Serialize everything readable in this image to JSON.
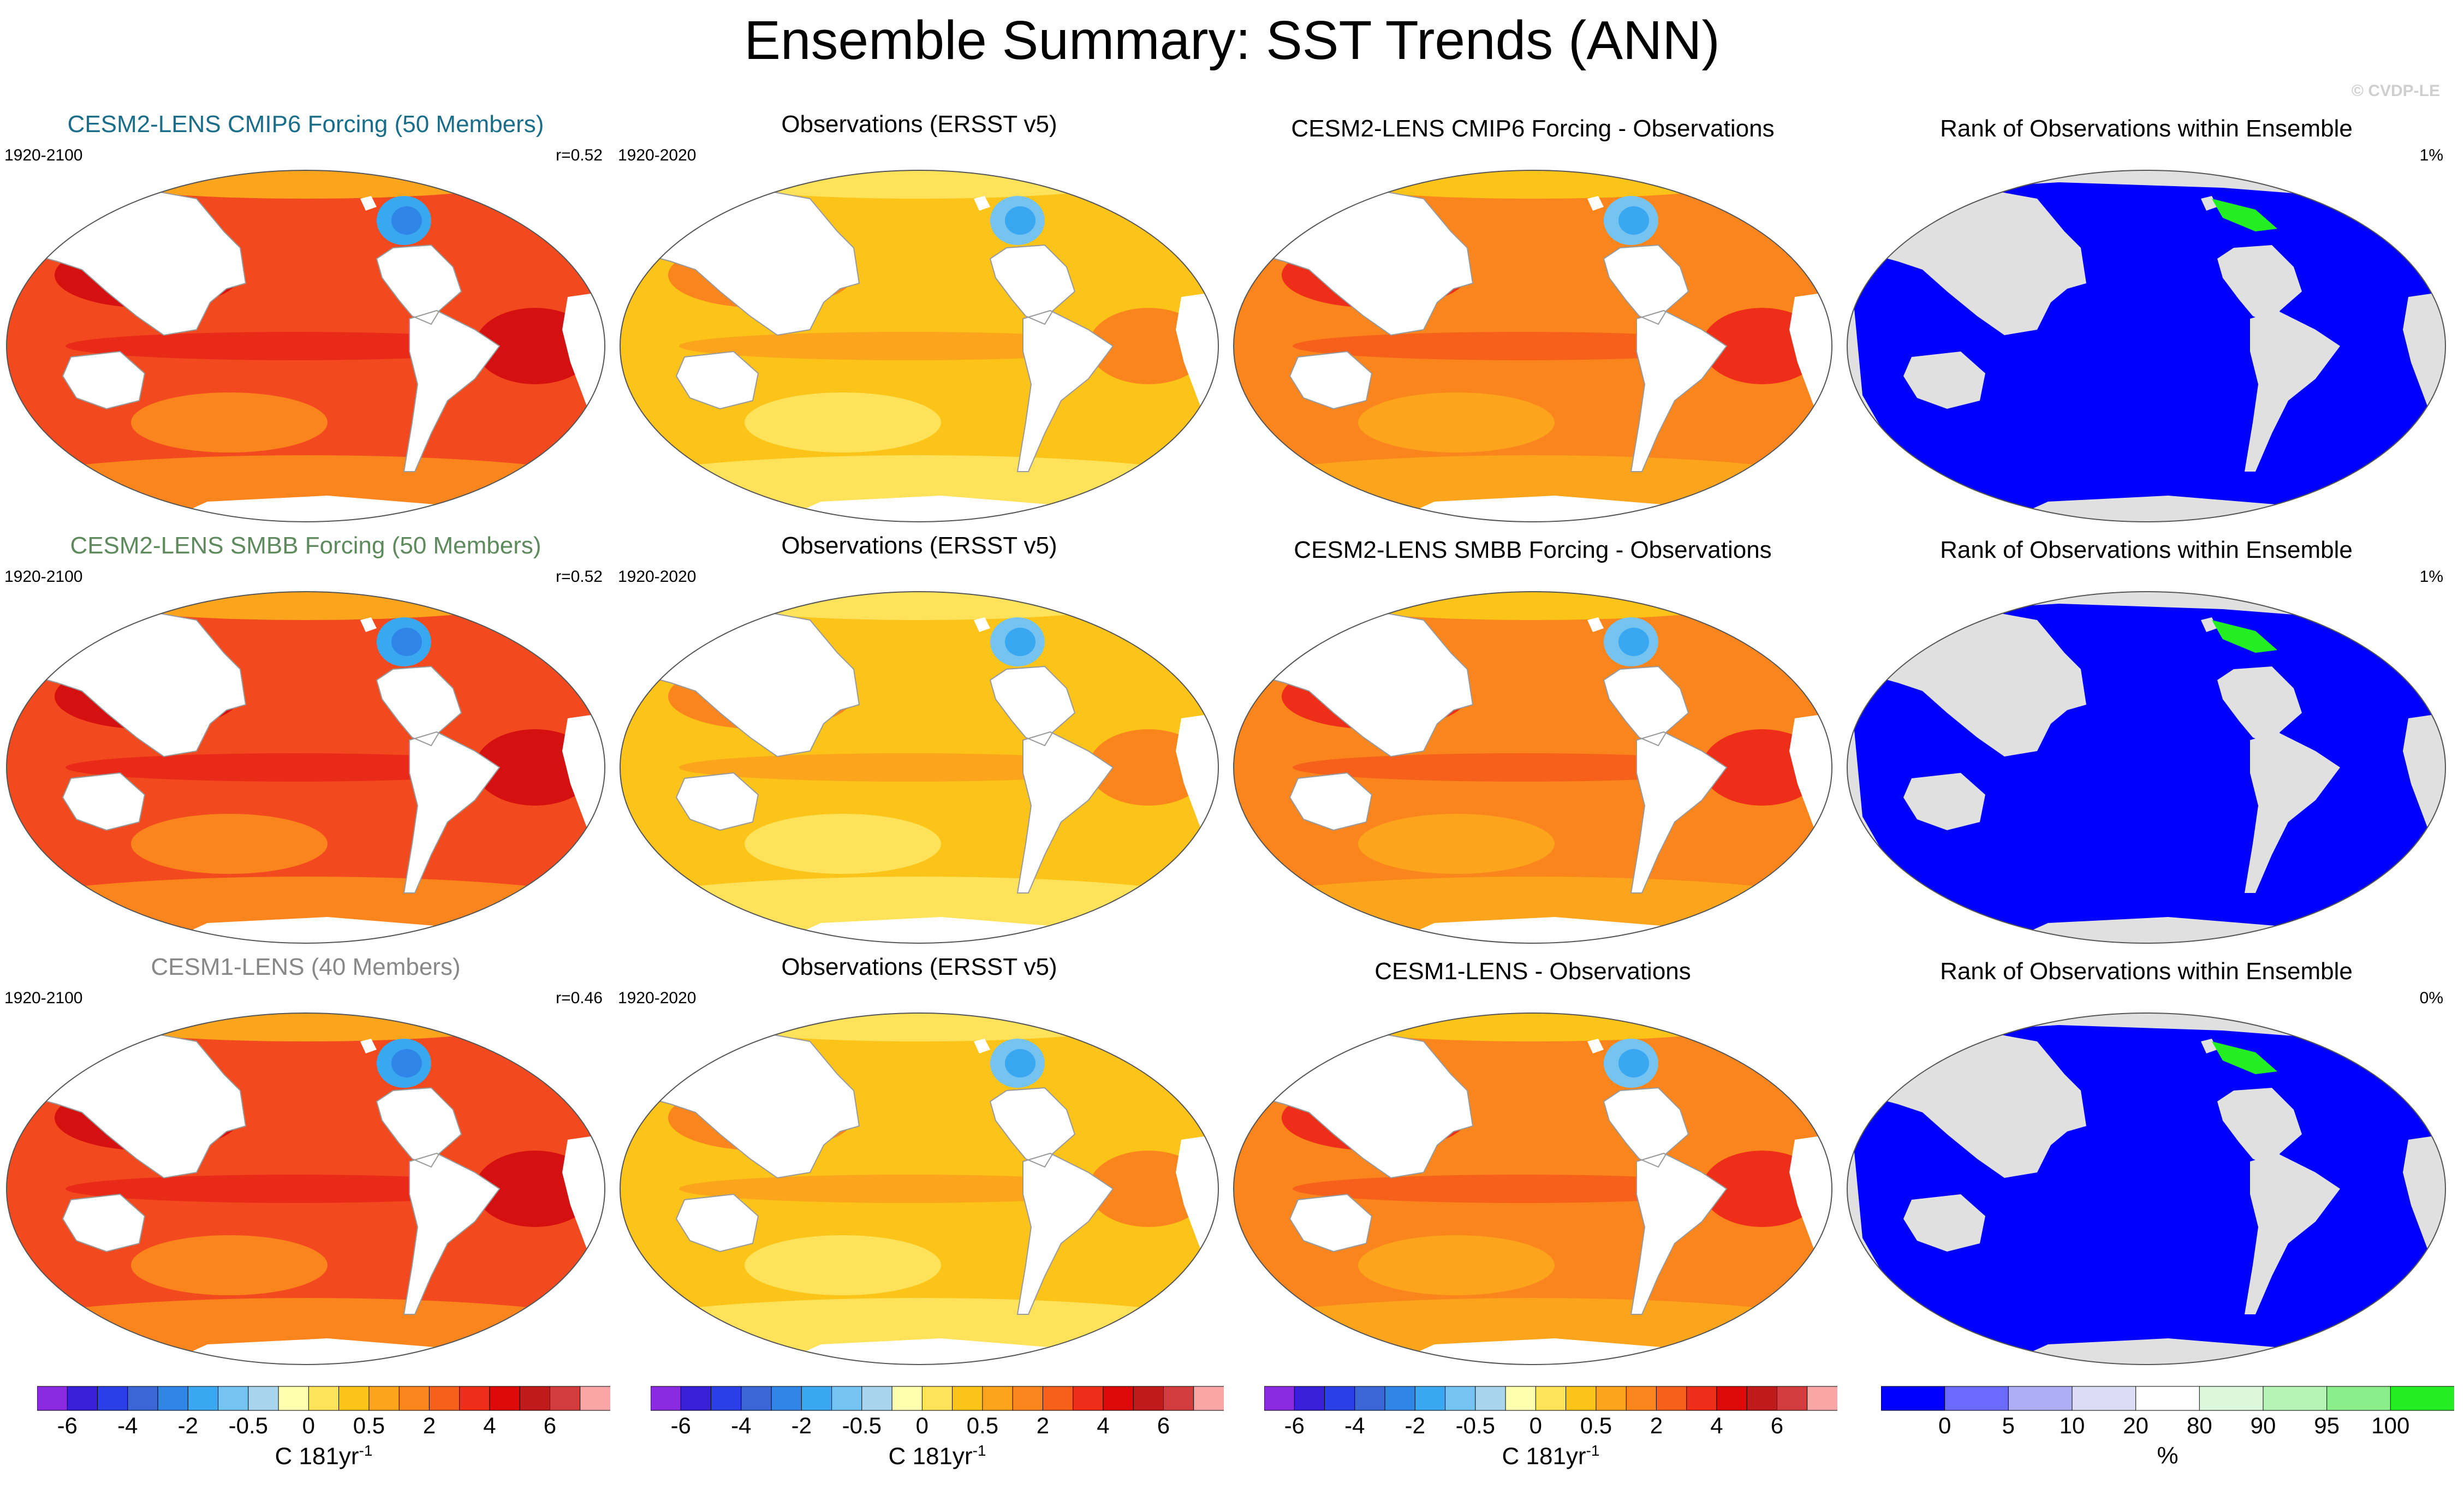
{
  "title": "Ensemble Summary: SST Trends (ANN)",
  "watermark": "© CVDP-LE",
  "colors": {
    "cmip6_title": "#1a6e8a",
    "smbb_title": "#5e8a5e",
    "cesm1_title": "#888888",
    "land": "#ffffff",
    "land_rank": "#e0e0e0",
    "ocean_rank": "#0000ff",
    "rank_high": "#22ee22"
  },
  "rows": [
    {
      "ensemble": {
        "title": "CESM2-LENS CMIP6 Forcing (50 Members)",
        "period": "1920-2100",
        "corr": "r=0.52",
        "title_color": "cmip6_title",
        "tone": "red"
      },
      "obs": {
        "title": "Observations (ERSST v5)",
        "period": "1920-2020",
        "tone": "yellow"
      },
      "diff": {
        "title": "CESM2-LENS CMIP6 Forcing - Observations",
        "tone": "orange"
      },
      "rank": {
        "title": "Rank of Observations within Ensemble",
        "pct": "1%"
      }
    },
    {
      "ensemble": {
        "title": "CESM2-LENS SMBB Forcing (50 Members)",
        "period": "1920-2100",
        "corr": "r=0.52",
        "title_color": "smbb_title",
        "tone": "red"
      },
      "obs": {
        "title": "Observations (ERSST v5)",
        "period": "1920-2020",
        "tone": "yellow"
      },
      "diff": {
        "title": "CESM2-LENS SMBB Forcing - Observations",
        "tone": "orange"
      },
      "rank": {
        "title": "Rank of Observations within Ensemble",
        "pct": "1%"
      }
    },
    {
      "ensemble": {
        "title": "CESM1-LENS (40 Members)",
        "period": "1920-2100",
        "corr": "r=0.46",
        "title_color": "cesm1_title",
        "tone": "red"
      },
      "obs": {
        "title": "Observations (ERSST v5)",
        "period": "1920-2020",
        "tone": "yellow"
      },
      "diff": {
        "title": "CESM1-LENS - Observations",
        "tone": "orange"
      },
      "rank": {
        "title": "Rank of Observations within Ensemble",
        "pct": "0%"
      }
    }
  ],
  "sst_colorbar": {
    "labels": [
      "-6",
      "-4",
      "-2",
      "-0.5",
      "0",
      "0.5",
      "2",
      "4",
      "6"
    ],
    "unit": "C 181yr",
    "unit_sup": "-1",
    "colors": [
      "#8a2be2",
      "#3a1fd8",
      "#2a40e6",
      "#3a66d8",
      "#2f86e8",
      "#39a8f0",
      "#74c3f0",
      "#a8d4ee",
      "#ffffb0",
      "#fde25a",
      "#fcc418",
      "#fca41c",
      "#fb851d",
      "#f6601a",
      "#ee2e18",
      "#de0a0a",
      "#c01a1a",
      "#d23c3c",
      "#faa6a6"
    ]
  },
  "rank_colorbar": {
    "labels": [
      "0",
      "5",
      "10",
      "20",
      "80",
      "90",
      "95",
      "100"
    ],
    "unit": "%",
    "colors": [
      "#0000ff",
      "#6a6aff",
      "#aeaef4",
      "#dcdcf6",
      "#ffffff",
      "#dcf8dc",
      "#b6f4b6",
      "#8aee8a",
      "#22ee22"
    ]
  },
  "tones": {
    "red": {
      "base": "#f24a1e",
      "band": "#ea2a18",
      "warm": "#fb851d",
      "hot": "#d41010",
      "mid": "#fca41c",
      "anom": [
        "#39a8f0",
        "#2f86e8"
      ]
    },
    "yellow": {
      "base": "#fcc418",
      "band": "#fca41c",
      "warm": "#fde25a",
      "hot": "#fb851d",
      "mid": "#fde25a",
      "anom": [
        "#74c3f0",
        "#39a8f0"
      ]
    },
    "orange": {
      "base": "#fb851d",
      "band": "#f6601a",
      "warm": "#fca41c",
      "hot": "#ee2e18",
      "mid": "#fcc418",
      "anom": [
        "#74c3f0",
        "#39a8f0"
      ]
    }
  }
}
